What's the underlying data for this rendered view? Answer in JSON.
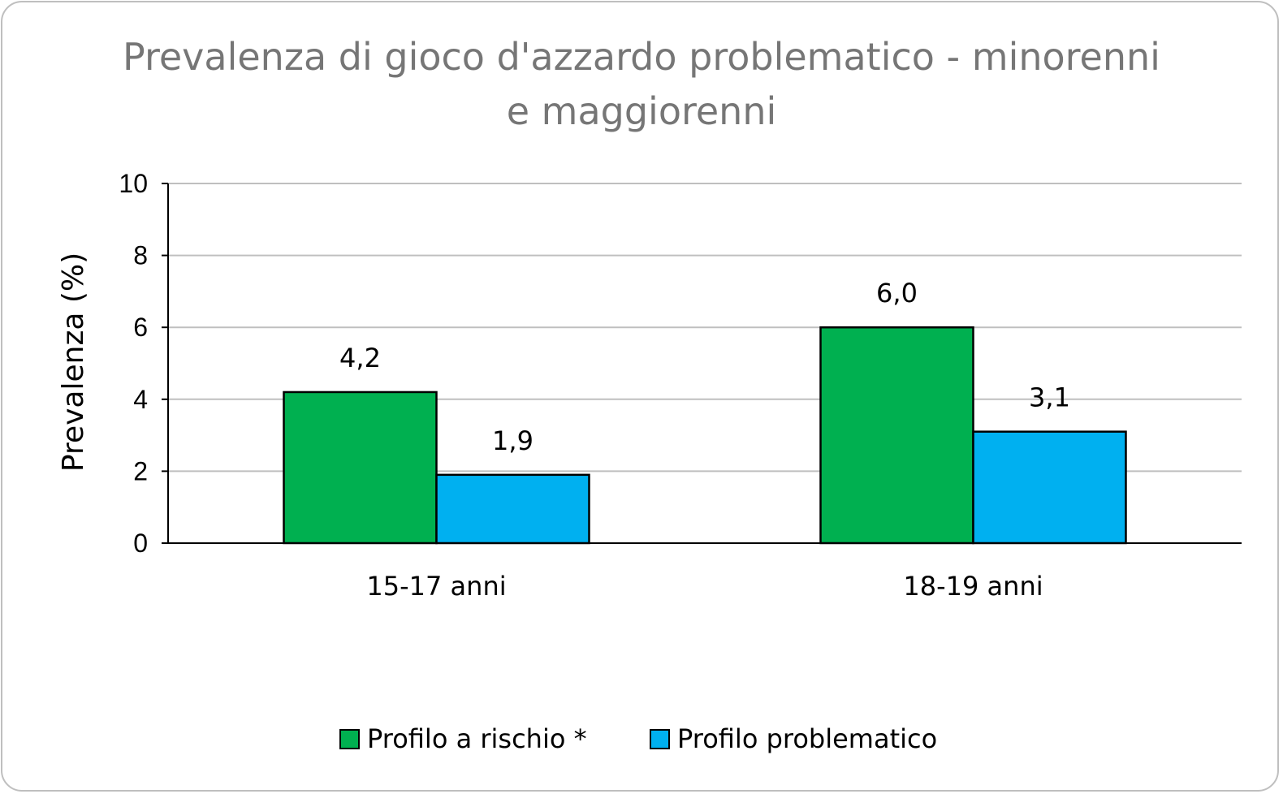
{
  "chart_data": {
    "type": "bar",
    "title": "Prevalenza di gioco d'azzardo problematico - minorenni e maggiorenni",
    "title_lines": [
      "Prevalenza di gioco d'azzardo problematico - minorenni",
      "e maggiorenni"
    ],
    "ylabel": "Prevalenza (%)",
    "xlabel": "",
    "ylim": [
      0,
      10
    ],
    "yticks": [
      "0",
      "2",
      "4",
      "6",
      "8",
      "10"
    ],
    "ytick_values": [
      0,
      2,
      4,
      6,
      8,
      10
    ],
    "grid": true,
    "legend_position": "bottom",
    "categories": [
      "15-17 anni",
      "18-19 anni"
    ],
    "series": [
      {
        "name": "Profilo a rischio *",
        "values": [
          4.2,
          6.0
        ],
        "labels": [
          "4,2",
          "6,0"
        ],
        "color": "#00b050"
      },
      {
        "name": "Profilo problematico",
        "values": [
          1.9,
          3.1
        ],
        "labels": [
          "1,9",
          "3,1"
        ],
        "color": "#00b0f0"
      }
    ]
  }
}
